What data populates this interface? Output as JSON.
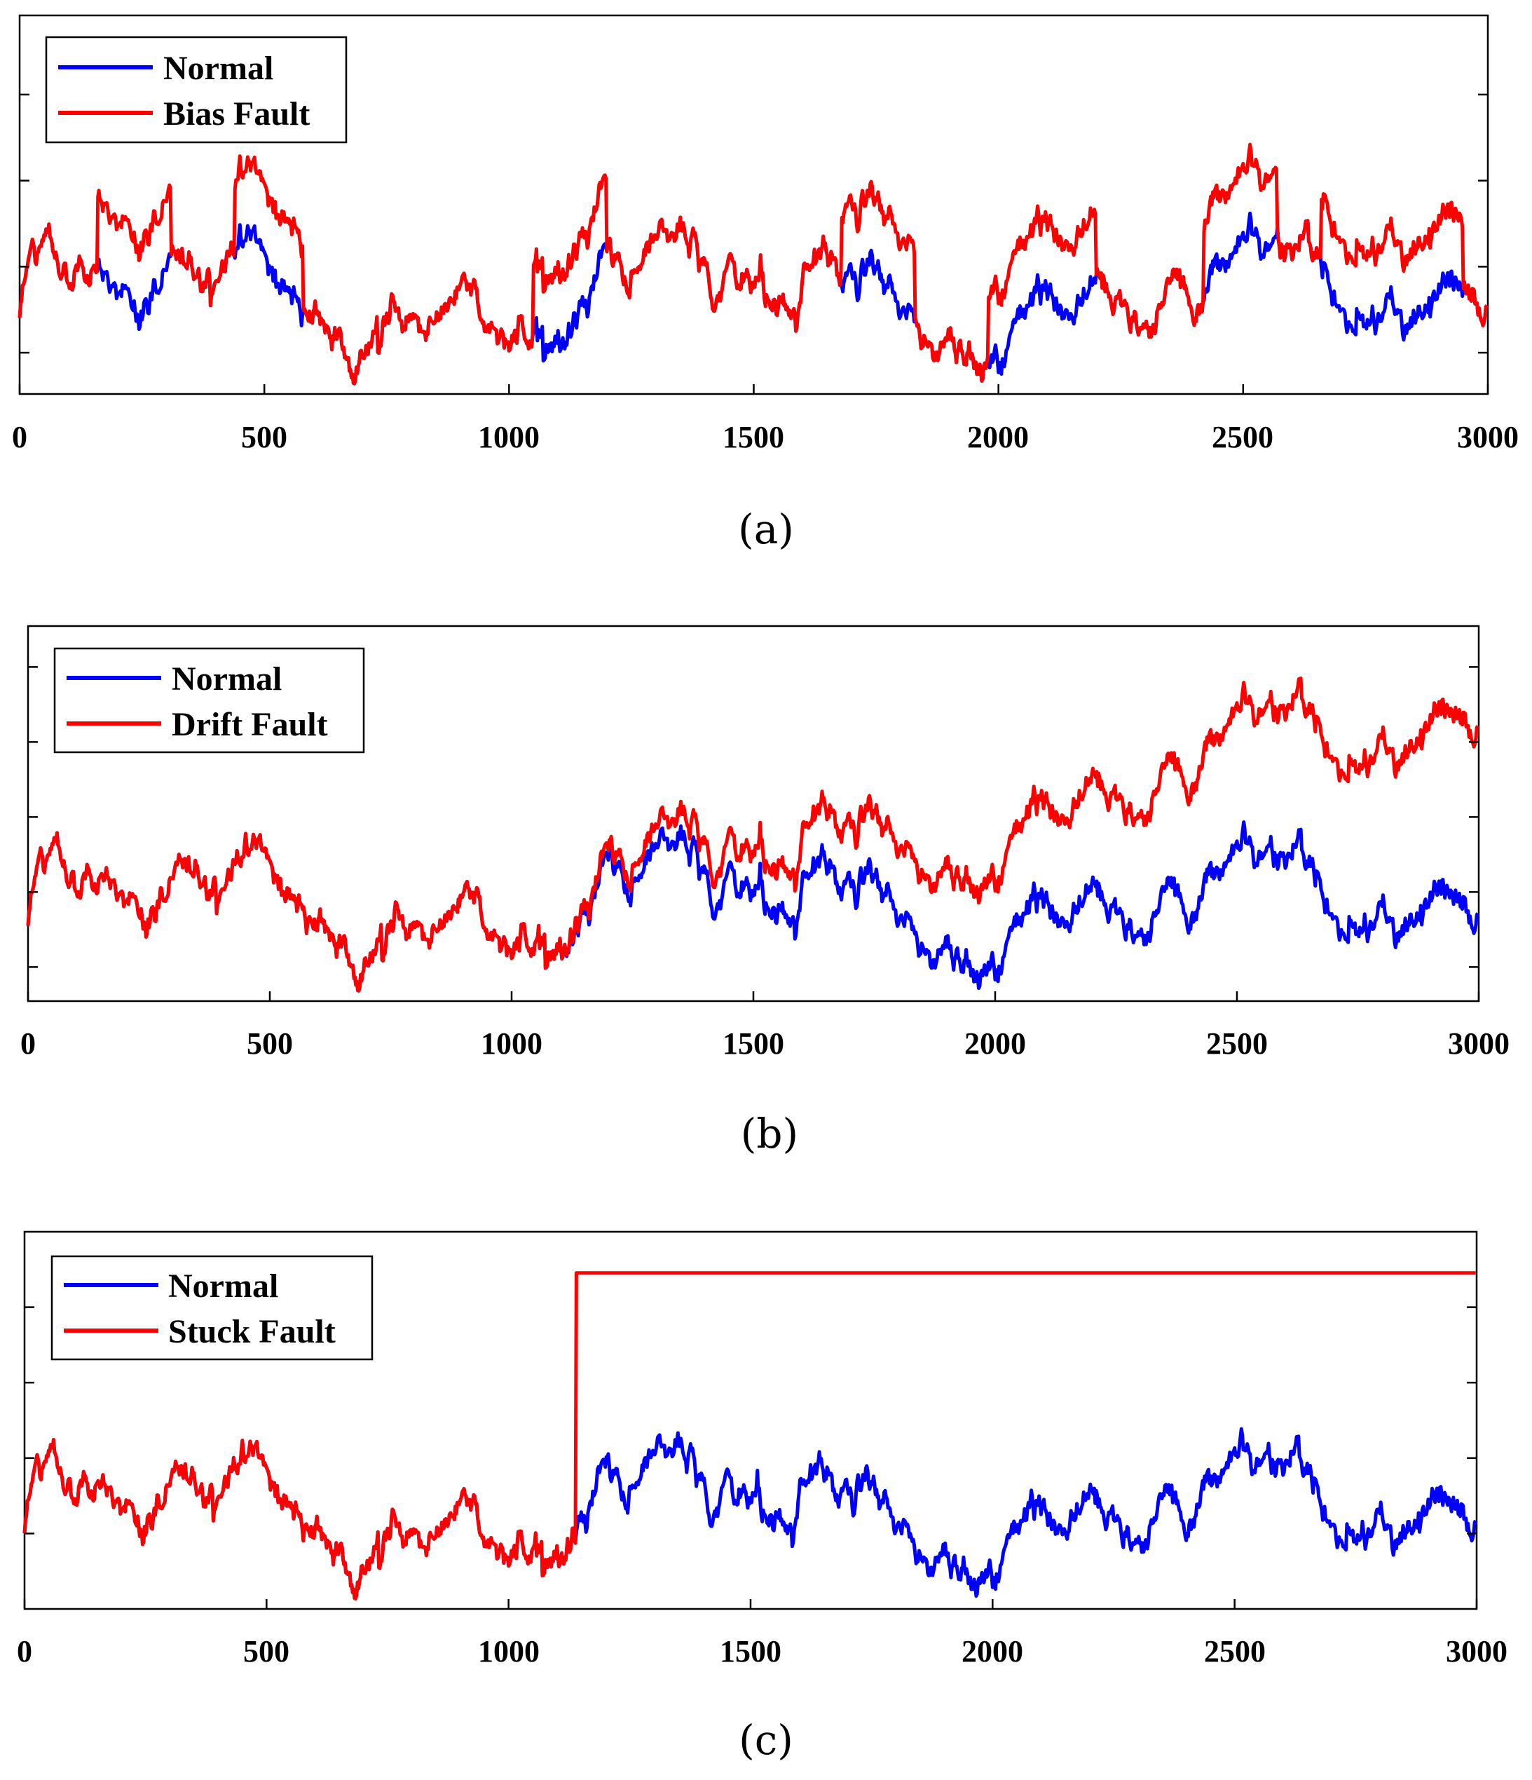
{
  "chart_data": [
    {
      "panel_label": "(a)",
      "type": "line",
      "xlim": [
        0,
        3000
      ],
      "ylim": [
        0,
        1.1
      ],
      "grid": false,
      "x_ticks": [
        "0",
        "500",
        "1000",
        "1500",
        "2000",
        "2500",
        "3000"
      ],
      "y_tick_values": [
        0.12,
        0.37,
        0.62,
        0.87
      ],
      "y_tick_labels_shown": false,
      "legend_position": "top-left",
      "series": [
        {
          "name": "Normal",
          "color": "#0000ff"
        },
        {
          "name": "Bias Fault",
          "color": "#ff0000"
        }
      ],
      "fault_intervals": [
        [
          160,
          310
        ],
        [
          440,
          580
        ],
        [
          1050,
          1200
        ],
        [
          1680,
          1830
        ],
        [
          1980,
          2200
        ],
        [
          2420,
          2570
        ],
        [
          2660,
          2950
        ]
      ],
      "fault_offset": 0.2
    },
    {
      "panel_label": "(b)",
      "type": "line",
      "xlim": [
        0,
        3000
      ],
      "ylim": [
        0,
        1.1
      ],
      "grid": false,
      "x_ticks": [
        "0",
        "500",
        "1000",
        "1500",
        "2000",
        "2500",
        "3000"
      ],
      "y_tick_values": [
        0.1,
        0.32,
        0.54,
        0.76,
        0.98
      ],
      "y_tick_labels_shown": false,
      "legend_position": "top-left",
      "series": [
        {
          "name": "Normal",
          "color": "#0000ff"
        },
        {
          "name": "Drift Fault",
          "color": "#ff0000"
        }
      ],
      "drift_start": 1100,
      "drift_end_offset": 0.55
    },
    {
      "panel_label": "(c)",
      "type": "line",
      "xlim": [
        0,
        3000
      ],
      "ylim": [
        0,
        1.1
      ],
      "grid": false,
      "x_ticks": [
        "0",
        "500",
        "1000",
        "1500",
        "2000",
        "2500",
        "3000"
      ],
      "y_tick_values": [
        0.22,
        0.44,
        0.66,
        0.88
      ],
      "y_tick_labels_shown": false,
      "legend_position": "top-left",
      "series": [
        {
          "name": "Normal",
          "color": "#0000ff"
        },
        {
          "name": "Stuck Fault",
          "color": "#ff0000"
        }
      ],
      "stuck_start": 1140,
      "stuck_value": 0.98
    }
  ]
}
